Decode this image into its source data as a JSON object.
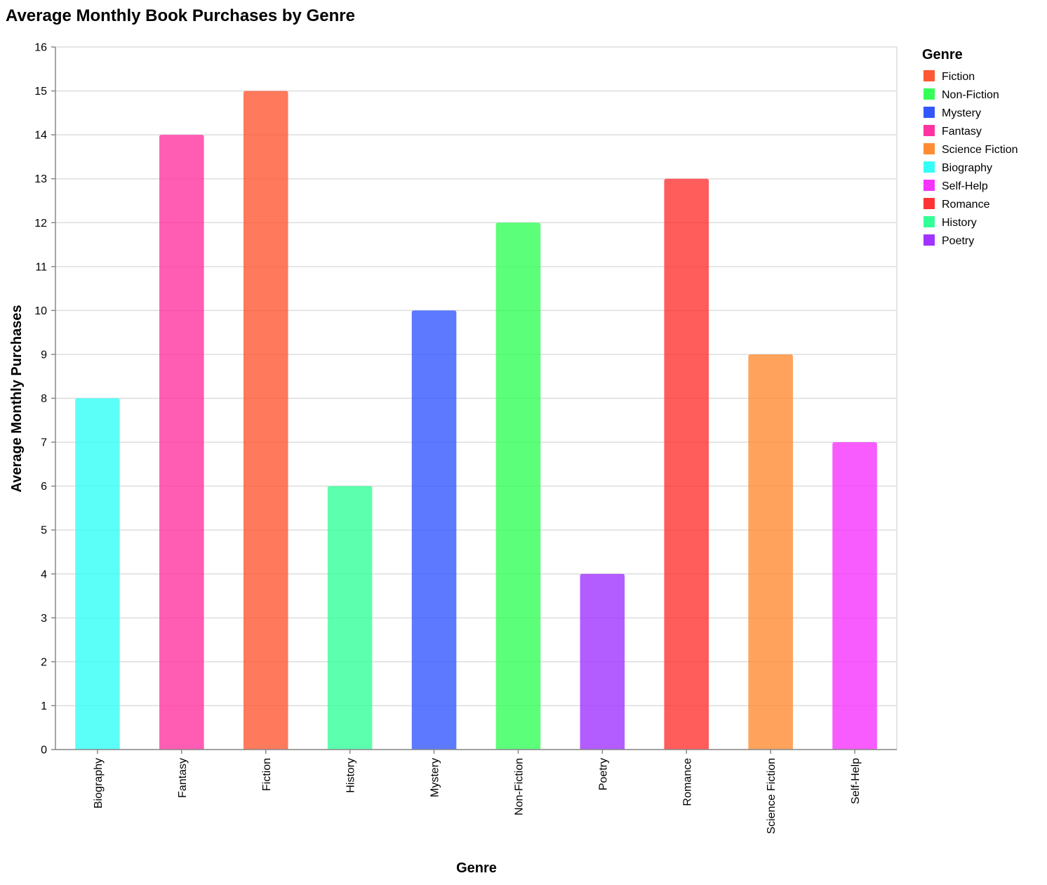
{
  "chart_data": {
    "type": "bar",
    "title": "Average Monthly Book Purchases by Genre",
    "xlabel": "Genre",
    "ylabel": "Average Monthly Purchases",
    "ylim": [
      0,
      16
    ],
    "yticks": [
      0,
      1,
      2,
      3,
      4,
      5,
      6,
      7,
      8,
      9,
      10,
      11,
      12,
      13,
      14,
      15,
      16
    ],
    "grid": true,
    "legend_title": "Genre",
    "legend_position": "right",
    "categories": [
      "Biography",
      "Fantasy",
      "Fiction",
      "History",
      "Mystery",
      "Non-Fiction",
      "Poetry",
      "Romance",
      "Science Fiction",
      "Self-Help"
    ],
    "values": [
      8,
      14,
      15,
      6,
      10,
      12,
      4,
      13,
      9,
      7
    ],
    "legend": [
      {
        "label": "Fiction",
        "color": "#ff5733"
      },
      {
        "label": "Non-Fiction",
        "color": "#33ff57"
      },
      {
        "label": "Mystery",
        "color": "#3357ff"
      },
      {
        "label": "Fantasy",
        "color": "#ff33a1"
      },
      {
        "label": "Science Fiction",
        "color": "#ff8c33"
      },
      {
        "label": "Biography",
        "color": "#33fff6"
      },
      {
        "label": "Self-Help",
        "color": "#f633ff"
      },
      {
        "label": "Romance",
        "color": "#ff3333"
      },
      {
        "label": "History",
        "color": "#33ff99"
      },
      {
        "label": "Poetry",
        "color": "#a033ff"
      }
    ],
    "bar_opacity": 0.8
  }
}
